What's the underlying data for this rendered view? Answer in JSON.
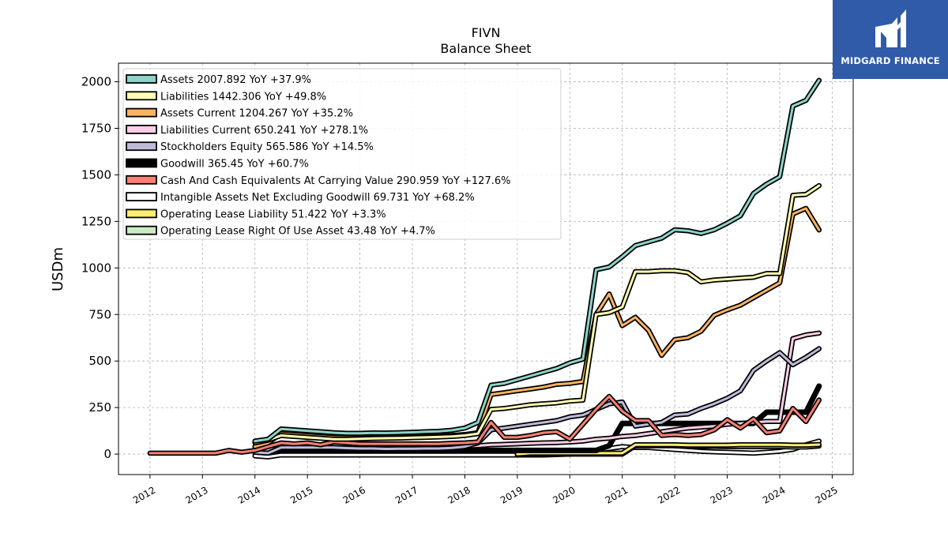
{
  "colors": {
    "assets": "#8dd3c7",
    "liabilities": "#ffffb3",
    "assets_current": "#fdb462",
    "liabilities_current": "#fccde5",
    "equity": "#bebada",
    "goodwill": "#000000",
    "cash": "#fb8072",
    "intangibles": "#ffffff",
    "op_lease_liab": "#ffed6f",
    "op_lease_rou": "#ccebc5",
    "logo_bg": "#2f5ba8"
  },
  "logo": {
    "text": "MIDGARD FINANCE",
    "icon": "midgard-logo-icon"
  },
  "chart_data": {
    "type": "line",
    "title": "FIVN",
    "subtitle": "Balance  Sheet",
    "xlabel": "",
    "ylabel": "USDm",
    "xlim": [
      2011.4,
      2025.4
    ],
    "ylim": [
      -110,
      2100
    ],
    "xticks": [
      "2012",
      "2013",
      "2014",
      "2015",
      "2016",
      "2017",
      "2018",
      "2019",
      "2020",
      "2021",
      "2022",
      "2023",
      "2024",
      "2025"
    ],
    "yticks": [
      "0",
      "250",
      "500",
      "750",
      "1000",
      "1250",
      "1500",
      "1750",
      "2000"
    ],
    "grid": true,
    "legend_position": "top-left",
    "series": [
      {
        "name": "Assets",
        "legend": "Assets  2007.892 YoY +37.9%",
        "color_key": "assets",
        "x": [
          2014.0,
          2014.25,
          2014.5,
          2014.75,
          2015.0,
          2015.25,
          2015.5,
          2015.75,
          2016.0,
          2016.25,
          2016.5,
          2016.75,
          2017.0,
          2017.25,
          2017.5,
          2017.75,
          2018.0,
          2018.25,
          2018.5,
          2018.75,
          2019.0,
          2019.25,
          2019.5,
          2019.75,
          2020.0,
          2020.25,
          2020.5,
          2020.75,
          2021.0,
          2021.25,
          2021.5,
          2021.75,
          2022.0,
          2022.25,
          2022.5,
          2022.75,
          2023.0,
          2023.25,
          2023.5,
          2023.75,
          2024.0,
          2024.25,
          2024.5,
          2024.75
        ],
        "y": [
          70,
          80,
          135,
          130,
          125,
          120,
          115,
          112,
          112,
          114,
          113,
          115,
          117,
          120,
          122,
          128,
          140,
          170,
          370,
          380,
          400,
          420,
          440,
          460,
          490,
          510,
          990,
          1005,
          1060,
          1120,
          1140,
          1160,
          1205,
          1200,
          1185,
          1205,
          1240,
          1280,
          1400,
          1450,
          1490,
          1870,
          1900,
          2008
        ]
      },
      {
        "name": "Liabilities",
        "legend": "Liabilities  1442.306 YoY +49.8%",
        "color_key": "liabilities",
        "x": [
          2014.0,
          2014.25,
          2014.5,
          2014.75,
          2015.0,
          2015.25,
          2015.5,
          2015.75,
          2016.0,
          2016.25,
          2016.5,
          2016.75,
          2017.0,
          2017.25,
          2017.5,
          2017.75,
          2018.0,
          2018.25,
          2018.5,
          2018.75,
          2019.0,
          2019.25,
          2019.5,
          2019.75,
          2020.0,
          2020.25,
          2020.5,
          2020.75,
          2021.0,
          2021.25,
          2021.5,
          2021.75,
          2022.0,
          2022.25,
          2022.5,
          2022.75,
          2023.0,
          2023.25,
          2023.5,
          2023.75,
          2024.0,
          2024.25,
          2024.5,
          2024.75
        ],
        "y": [
          60,
          75,
          100,
          95,
          90,
          85,
          80,
          80,
          82,
          84,
          85,
          86,
          88,
          90,
          92,
          95,
          100,
          110,
          240,
          245,
          255,
          265,
          270,
          275,
          285,
          290,
          750,
          760,
          790,
          980,
          980,
          985,
          985,
          975,
          925,
          935,
          940,
          945,
          950,
          970,
          970,
          1390,
          1395,
          1442
        ]
      },
      {
        "name": "Assets Current",
        "legend": "Assets Current  1204.267 YoY +35.2%",
        "color_key": "assets_current",
        "x": [
          2014.0,
          2014.25,
          2014.5,
          2014.75,
          2015.0,
          2015.25,
          2015.5,
          2015.75,
          2016.0,
          2016.25,
          2016.5,
          2016.75,
          2017.0,
          2017.25,
          2017.5,
          2017.75,
          2018.0,
          2018.25,
          2018.5,
          2018.75,
          2019.0,
          2019.25,
          2019.5,
          2019.75,
          2020.0,
          2020.25,
          2020.5,
          2020.75,
          2021.0,
          2021.25,
          2021.5,
          2021.75,
          2022.0,
          2022.25,
          2022.5,
          2022.75,
          2023.0,
          2023.25,
          2023.5,
          2023.75,
          2024.0,
          2024.25,
          2024.5,
          2024.75
        ],
        "y": [
          40,
          60,
          110,
          105,
          100,
          95,
          90,
          88,
          88,
          90,
          88,
          90,
          92,
          95,
          97,
          100,
          105,
          115,
          320,
          330,
          340,
          350,
          360,
          375,
          380,
          390,
          750,
          860,
          690,
          735,
          665,
          530,
          615,
          625,
          660,
          745,
          775,
          800,
          840,
          880,
          920,
          1290,
          1320,
          1204
        ]
      },
      {
        "name": "Liabilities Current",
        "legend": "Liabilities Current  650.241 YoY +278.1%",
        "color_key": "liabilities_current",
        "x": [
          2014.0,
          2014.25,
          2014.5,
          2014.75,
          2015.0,
          2015.25,
          2015.5,
          2015.75,
          2016.0,
          2016.25,
          2016.5,
          2016.75,
          2017.0,
          2017.25,
          2017.5,
          2017.75,
          2018.0,
          2018.25,
          2018.5,
          2018.75,
          2019.0,
          2019.25,
          2019.5,
          2019.75,
          2020.0,
          2020.25,
          2020.5,
          2020.75,
          2021.0,
          2021.25,
          2021.5,
          2021.75,
          2022.0,
          2022.25,
          2022.5,
          2022.75,
          2023.0,
          2023.25,
          2023.5,
          2023.75,
          2024.0,
          2024.25,
          2024.5,
          2024.75
        ],
        "y": [
          20,
          25,
          30,
          30,
          30,
          30,
          32,
          32,
          33,
          34,
          35,
          36,
          37,
          38,
          39,
          40,
          42,
          45,
          50,
          52,
          55,
          58,
          60,
          62,
          65,
          70,
          80,
          85,
          95,
          100,
          110,
          120,
          130,
          140,
          145,
          150,
          160,
          165,
          170,
          175,
          175,
          620,
          640,
          650
        ]
      },
      {
        "name": "Stockholders Equity",
        "legend": "Stockholders Equity  565.586 YoY +14.5%",
        "color_key": "equity",
        "x": [
          2014.0,
          2014.25,
          2014.5,
          2014.75,
          2015.0,
          2015.25,
          2015.5,
          2015.75,
          2016.0,
          2016.25,
          2016.5,
          2016.75,
          2017.0,
          2017.25,
          2017.5,
          2017.75,
          2018.0,
          2018.25,
          2018.5,
          2018.75,
          2019.0,
          2019.25,
          2019.5,
          2019.75,
          2020.0,
          2020.25,
          2020.5,
          2020.75,
          2021.0,
          2021.25,
          2021.5,
          2021.75,
          2022.0,
          2022.25,
          2022.5,
          2022.75,
          2023.0,
          2023.25,
          2023.5,
          2023.75,
          2024.0,
          2024.25,
          2024.5,
          2024.75
        ],
        "y": [
          10,
          5,
          35,
          35,
          35,
          35,
          35,
          32,
          30,
          30,
          28,
          29,
          29,
          30,
          30,
          33,
          40,
          60,
          130,
          140,
          150,
          160,
          170,
          180,
          200,
          210,
          240,
          270,
          280,
          150,
          160,
          170,
          210,
          215,
          245,
          270,
          300,
          340,
          450,
          500,
          545,
          480,
          520,
          566
        ]
      },
      {
        "name": "Goodwill",
        "legend": "Goodwill  365.45 YoY +60.7%",
        "color_key": "goodwill",
        "x": [
          2014.0,
          2019.5,
          2020.0,
          2020.25,
          2020.5,
          2020.75,
          2021.0,
          2021.25,
          2021.5,
          2021.75,
          2022.0,
          2022.25,
          2022.5,
          2022.75,
          2023.0,
          2023.25,
          2023.5,
          2023.75,
          2024.0,
          2024.25,
          2024.5,
          2024.75
        ],
        "y": [
          20,
          20,
          20,
          20,
          20,
          45,
          165,
          165,
          165,
          165,
          165,
          165,
          165,
          165,
          165,
          165,
          165,
          225,
          225,
          225,
          225,
          365
        ]
      },
      {
        "name": "Cash And Cash Equivalents At Carrying Value",
        "legend": "Cash And Cash Equivalents At Carrying Value  290.959 YoY +127.6%",
        "color_key": "cash",
        "x": [
          2012.0,
          2012.25,
          2012.5,
          2012.75,
          2013.0,
          2013.25,
          2013.5,
          2013.75,
          2014.0,
          2014.25,
          2014.5,
          2014.75,
          2015.0,
          2015.25,
          2015.5,
          2015.75,
          2016.0,
          2016.25,
          2016.5,
          2016.75,
          2017.0,
          2017.25,
          2017.5,
          2017.75,
          2018.0,
          2018.25,
          2018.5,
          2018.75,
          2019.0,
          2019.25,
          2019.5,
          2019.75,
          2020.0,
          2020.25,
          2020.5,
          2020.75,
          2021.0,
          2021.25,
          2021.5,
          2021.75,
          2022.0,
          2022.25,
          2022.5,
          2022.75,
          2023.0,
          2023.25,
          2023.5,
          2023.75,
          2024.0,
          2024.25,
          2024.5,
          2024.75
        ],
        "y": [
          5,
          5,
          5,
          5,
          5,
          5,
          20,
          10,
          20,
          40,
          60,
          55,
          60,
          50,
          65,
          60,
          55,
          55,
          55,
          55,
          55,
          55,
          55,
          58,
          60,
          65,
          170,
          90,
          90,
          100,
          115,
          120,
          80,
          160,
          240,
          310,
          230,
          180,
          180,
          100,
          105,
          100,
          105,
          130,
          185,
          140,
          190,
          115,
          125,
          245,
          175,
          291
        ]
      },
      {
        "name": "Intangible Assets Net Excluding Goodwill",
        "legend": "Intangible Assets Net Excluding Goodwill  69.731 YoY +68.2%",
        "color_key": "intangibles",
        "x": [
          2014.0,
          2014.25,
          2014.5,
          2014.75,
          2015.0,
          2016.0,
          2017.0,
          2018.0,
          2019.0,
          2019.5,
          2020.0,
          2020.25,
          2020.5,
          2020.75,
          2021.0,
          2021.25,
          2021.5,
          2021.75,
          2022.0,
          2022.25,
          2022.5,
          2022.75,
          2023.0,
          2023.25,
          2023.5,
          2023.75,
          2024.0,
          2024.25,
          2024.5,
          2024.75
        ],
        "y": [
          -10,
          -15,
          -5,
          -5,
          -5,
          -5,
          -5,
          -5,
          -5,
          -5,
          0,
          5,
          20,
          30,
          40,
          35,
          35,
          30,
          25,
          20,
          15,
          12,
          10,
          8,
          5,
          10,
          15,
          25,
          50,
          70
        ]
      },
      {
        "name": "Operating Lease Liability",
        "legend": "Operating Lease Liability  51.422 YoY +3.3%",
        "color_key": "op_lease_liab",
        "x": [
          2019.0,
          2019.25,
          2019.5,
          2019.75,
          2020.0,
          2020.25,
          2020.5,
          2020.75,
          2021.0,
          2021.25,
          2021.5,
          2021.75,
          2022.0,
          2022.25,
          2022.5,
          2022.75,
          2023.0,
          2023.25,
          2023.5,
          2023.75,
          2024.0,
          2024.25,
          2024.5,
          2024.75
        ],
        "y": [
          0,
          5,
          5,
          5,
          5,
          5,
          5,
          5,
          5,
          50,
          50,
          50,
          50,
          48,
          48,
          48,
          48,
          50,
          50,
          50,
          50,
          48,
          48,
          51
        ]
      },
      {
        "name": "Operating Lease Right Of Use Asset",
        "legend": "Operating Lease Right Of Use Asset  43.48 YoY +4.7%",
        "color_key": "op_lease_rou",
        "x": [
          2019.0,
          2019.25,
          2019.5,
          2019.75,
          2020.0,
          2020.25,
          2020.5,
          2020.75,
          2021.0,
          2021.25,
          2021.5,
          2021.75,
          2022.0,
          2022.25,
          2022.5,
          2022.75,
          2023.0,
          2023.25,
          2023.5,
          2023.75,
          2024.0,
          2024.25,
          2024.5,
          2024.75
        ],
        "y": [
          -5,
          0,
          0,
          0,
          0,
          0,
          0,
          0,
          0,
          45,
          45,
          45,
          45,
          42,
          42,
          42,
          40,
          40,
          40,
          40,
          40,
          38,
          38,
          43
        ]
      }
    ]
  }
}
